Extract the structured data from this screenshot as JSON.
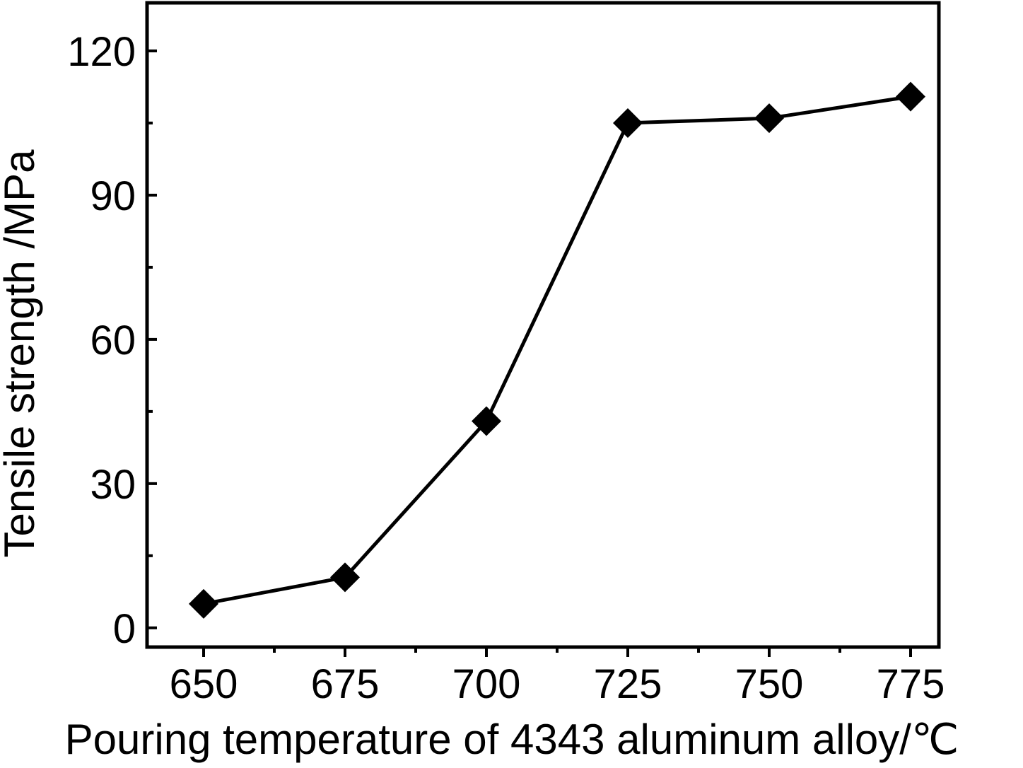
{
  "chart_data": {
    "type": "line",
    "title": "",
    "xlabel": "Pouring temperature of 4343 aluminum alloy/℃",
    "ylabel": "Tensile strength /MPa",
    "x": [
      650,
      675,
      700,
      725,
      750,
      775
    ],
    "x_ticks": [
      "650",
      "675",
      "700",
      "725",
      "750",
      "775"
    ],
    "y_ticks": [
      "0",
      "30",
      "60",
      "90",
      "120"
    ],
    "xlim": [
      640,
      780
    ],
    "ylim": [
      -4,
      130
    ],
    "grid": false,
    "legend": "none",
    "series": [
      {
        "marker": "diamond",
        "color": "#000000",
        "values": [
          5,
          10.5,
          43,
          105,
          106,
          110.5
        ]
      }
    ]
  }
}
